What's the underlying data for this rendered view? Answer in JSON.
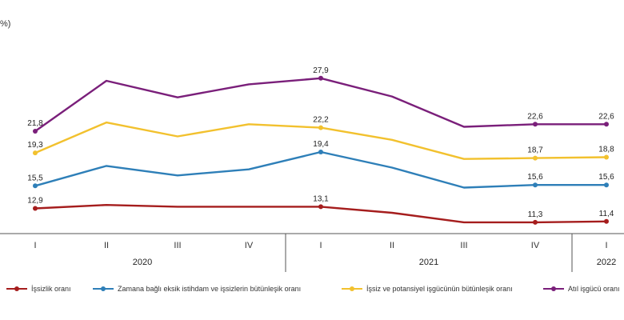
{
  "unit_label": "%)",
  "chart_data": {
    "type": "line",
    "categories": [
      "I",
      "II",
      "III",
      "IV",
      "I",
      "II",
      "III",
      "IV",
      "I"
    ],
    "years": [
      {
        "label": "2020",
        "quarters": 4
      },
      {
        "label": "2021",
        "quarters": 4
      },
      {
        "label": "2022",
        "quarters": 1
      }
    ],
    "series": [
      {
        "name": "İşsizlik oranı",
        "color": "#a51d1d",
        "values": [
          12.9,
          13.3,
          13.1,
          13.1,
          13.1,
          12.4,
          11.3,
          11.3,
          11.4
        ],
        "labeled": [
          0,
          4,
          7,
          8
        ]
      },
      {
        "name": "Zamana bağlı eksik istihdam ve işsizlerin bütünleşik oranı",
        "color": "#2e7fb8",
        "values": [
          15.5,
          17.8,
          16.7,
          17.4,
          19.4,
          17.6,
          15.3,
          15.6,
          15.6
        ],
        "labeled": [
          0,
          4,
          7,
          8
        ]
      },
      {
        "name": "İşsiz ve potansiyel işgücünün bütünleşik oranı",
        "color": "#f2c12e",
        "values": [
          19.3,
          22.8,
          21.2,
          22.6,
          22.2,
          20.8,
          18.6,
          18.7,
          18.8
        ],
        "labeled": [
          0,
          4,
          7,
          8
        ]
      },
      {
        "name": "Atıl işgücü oranı",
        "color": "#7a1f7a",
        "values": [
          21.8,
          27.6,
          25.7,
          27.2,
          27.9,
          25.8,
          22.3,
          22.6,
          22.6
        ],
        "labeled": [
          0,
          4,
          7,
          8
        ]
      }
    ],
    "ylim": [
      10,
      30
    ],
    "grid": false,
    "legend": "bottom"
  }
}
